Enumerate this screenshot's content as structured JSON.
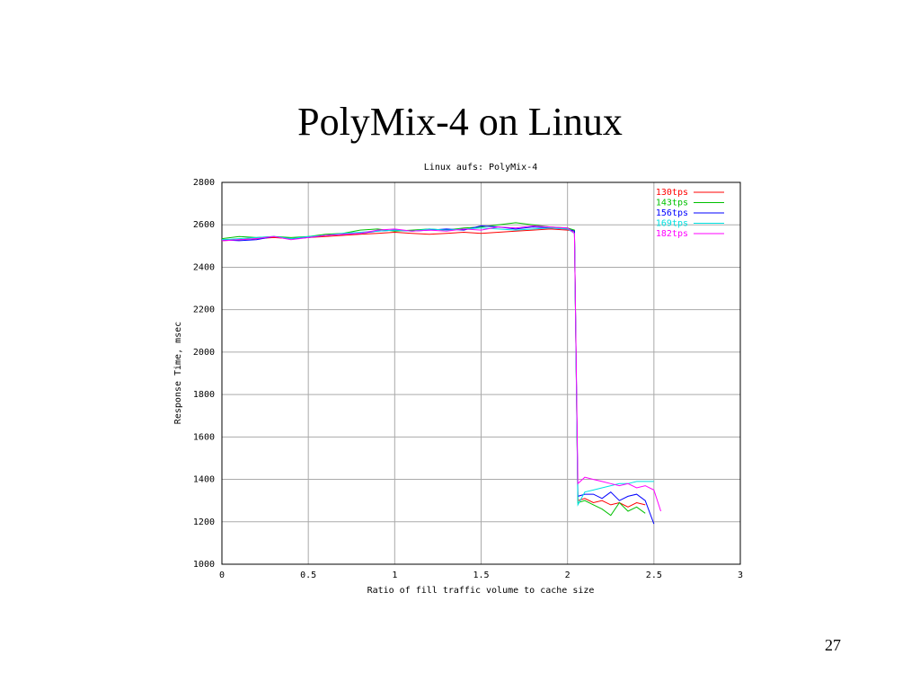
{
  "slide_title": "PolyMix-4 on Linux",
  "page_number": "27",
  "chart_data": {
    "type": "line",
    "title": "Linux aufs: PolyMix-4",
    "xlabel": "Ratio of fill traffic volume to cache size",
    "ylabel": "Response Time, msec",
    "x": [
      0,
      0.1,
      0.2,
      0.3,
      0.4,
      0.5,
      0.6,
      0.7,
      0.8,
      0.9,
      1.0,
      1.1,
      1.2,
      1.3,
      1.4,
      1.5,
      1.6,
      1.7,
      1.8,
      1.9,
      2.0,
      2.04,
      2.06,
      2.1,
      2.15,
      2.2,
      2.25,
      2.3,
      2.35,
      2.4,
      2.45,
      2.5,
      2.54
    ],
    "series": [
      {
        "name": "130tps",
        "color": "#ff0000",
        "values": [
          2525,
          2530,
          2535,
          2540,
          2535,
          2540,
          2545,
          2550,
          2555,
          2560,
          2565,
          2560,
          2555,
          2560,
          2565,
          2560,
          2565,
          2570,
          2575,
          2580,
          2575,
          2570,
          1300,
          1310,
          1290,
          1300,
          1280,
          1290,
          1270,
          1290,
          1280,
          null,
          null
        ]
      },
      {
        "name": "143tps",
        "color": "#00c000",
        "values": [
          2535,
          2545,
          2540,
          2545,
          2540,
          2545,
          2555,
          2560,
          2575,
          2580,
          2570,
          2575,
          2580,
          2575,
          2585,
          2590,
          2600,
          2610,
          2600,
          2590,
          2585,
          2575,
          1290,
          1300,
          1280,
          1260,
          1230,
          1290,
          1250,
          1270,
          1240,
          null,
          null
        ]
      },
      {
        "name": "156tps",
        "color": "#0000ff",
        "values": [
          2530,
          2525,
          2530,
          2545,
          2535,
          2540,
          2550,
          2555,
          2560,
          2570,
          2575,
          2570,
          2575,
          2580,
          2575,
          2595,
          2590,
          2580,
          2590,
          2585,
          2580,
          2570,
          1320,
          1330,
          1330,
          1310,
          1340,
          1300,
          1320,
          1330,
          1300,
          1190,
          null
        ]
      },
      {
        "name": "169tps",
        "color": "#00e0e0",
        "values": [
          2530,
          2535,
          2540,
          2545,
          2535,
          2545,
          2550,
          2560,
          2565,
          2570,
          2575,
          2570,
          2580,
          2575,
          2580,
          2585,
          2580,
          2575,
          2580,
          2585,
          2580,
          2560,
          1280,
          1340,
          1350,
          1360,
          1370,
          1380,
          1380,
          1390,
          1390,
          1390,
          null
        ]
      },
      {
        "name": "182tps",
        "color": "#ff00ff",
        "values": [
          2525,
          2530,
          2535,
          2545,
          2530,
          2540,
          2550,
          2555,
          2560,
          2575,
          2580,
          2570,
          2575,
          2570,
          2580,
          2575,
          2590,
          2585,
          2595,
          2590,
          2585,
          2560,
          1380,
          1410,
          1400,
          1390,
          1380,
          1370,
          1380,
          1360,
          1370,
          1350,
          1250
        ]
      }
    ],
    "xlim": [
      0,
      3
    ],
    "xticks": [
      0,
      0.5,
      1,
      1.5,
      2,
      2.5,
      3
    ],
    "ylim": [
      1000,
      2800
    ],
    "yticks": [
      1000,
      1200,
      1400,
      1600,
      1800,
      2000,
      2200,
      2400,
      2600,
      2800
    ],
    "grid": true,
    "legend": "upper right"
  }
}
